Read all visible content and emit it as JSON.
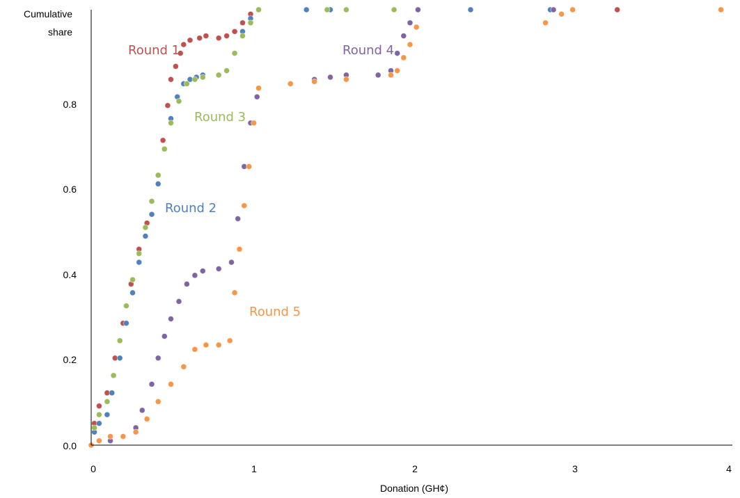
{
  "chart_data": {
    "type": "scatter",
    "title": "",
    "xlabel": "Donation (GH¢)",
    "ylabel_lines": [
      "Cumulative",
      "share"
    ],
    "xlim": [
      0,
      4
    ],
    "ylim": [
      0,
      1
    ],
    "xticks": [
      "0",
      "1",
      "2",
      "3",
      "4"
    ],
    "yticks": [
      "0.0",
      "0.2",
      "0.4",
      "0.6",
      "0.8"
    ],
    "grid": false,
    "legend": "inline labels",
    "series": [
      {
        "name": "Round 1",
        "color": "#c0504d",
        "points": [
          [
            0,
            0
          ],
          [
            0.02,
            0.05
          ],
          [
            0.05,
            0.09
          ],
          [
            0.1,
            0.12
          ],
          [
            0.15,
            0.2
          ],
          [
            0.2,
            0.28
          ],
          [
            0.25,
            0.37
          ],
          [
            0.3,
            0.45
          ],
          [
            0.35,
            0.51
          ],
          [
            0.38,
            0.56
          ],
          [
            0.42,
            0.62
          ],
          [
            0.45,
            0.7
          ],
          [
            0.48,
            0.78
          ],
          [
            0.5,
            0.84
          ],
          [
            0.53,
            0.87
          ],
          [
            0.56,
            0.9
          ],
          [
            0.58,
            0.92
          ],
          [
            0.62,
            0.93
          ],
          [
            0.68,
            0.935
          ],
          [
            0.72,
            0.94
          ],
          [
            0.8,
            0.935
          ],
          [
            0.85,
            0.94
          ],
          [
            0.9,
            0.95
          ],
          [
            0.95,
            0.97
          ],
          [
            1.0,
            0.99
          ],
          [
            1.05,
            1.0
          ],
          [
            3.3,
            1.0
          ]
        ]
      },
      {
        "name": "Round 2",
        "color": "#4f81bd",
        "points": [
          [
            0,
            0
          ],
          [
            0.02,
            0.03
          ],
          [
            0.05,
            0.05
          ],
          [
            0.1,
            0.07
          ],
          [
            0.13,
            0.12
          ],
          [
            0.18,
            0.2
          ],
          [
            0.22,
            0.28
          ],
          [
            0.26,
            0.35
          ],
          [
            0.3,
            0.42
          ],
          [
            0.34,
            0.48
          ],
          [
            0.38,
            0.53
          ],
          [
            0.42,
            0.6
          ],
          [
            0.46,
            0.68
          ],
          [
            0.5,
            0.75
          ],
          [
            0.54,
            0.8
          ],
          [
            0.58,
            0.83
          ],
          [
            0.62,
            0.84
          ],
          [
            0.66,
            0.845
          ],
          [
            0.7,
            0.85
          ],
          [
            0.8,
            0.85
          ],
          [
            0.85,
            0.86
          ],
          [
            0.9,
            0.9
          ],
          [
            0.95,
            0.95
          ],
          [
            1.0,
            0.98
          ],
          [
            1.05,
            1.0
          ],
          [
            1.35,
            1.0
          ],
          [
            1.5,
            1.0
          ],
          [
            2.38,
            1.0
          ],
          [
            2.88,
            1.0
          ]
        ]
      },
      {
        "name": "Round 3",
        "color": "#9bbb59",
        "points": [
          [
            0,
            0
          ],
          [
            0.02,
            0.04
          ],
          [
            0.05,
            0.07
          ],
          [
            0.1,
            0.1
          ],
          [
            0.14,
            0.16
          ],
          [
            0.18,
            0.24
          ],
          [
            0.22,
            0.32
          ],
          [
            0.26,
            0.38
          ],
          [
            0.3,
            0.44
          ],
          [
            0.34,
            0.5
          ],
          [
            0.38,
            0.56
          ],
          [
            0.42,
            0.62
          ],
          [
            0.46,
            0.68
          ],
          [
            0.5,
            0.74
          ],
          [
            0.55,
            0.79
          ],
          [
            0.6,
            0.83
          ],
          [
            0.65,
            0.84
          ],
          [
            0.7,
            0.845
          ],
          [
            0.8,
            0.85
          ],
          [
            0.85,
            0.86
          ],
          [
            0.9,
            0.9
          ],
          [
            0.95,
            0.94
          ],
          [
            1.0,
            0.97
          ],
          [
            1.05,
            1.0
          ],
          [
            1.48,
            1.0
          ],
          [
            1.6,
            1.0
          ],
          [
            1.9,
            1.0
          ],
          [
            2.05,
            1.0
          ]
        ]
      },
      {
        "name": "Round 4",
        "color": "#8064a2",
        "points": [
          [
            0.12,
            0.01
          ],
          [
            0.2,
            0.02
          ],
          [
            0.28,
            0.04
          ],
          [
            0.32,
            0.08
          ],
          [
            0.38,
            0.14
          ],
          [
            0.42,
            0.2
          ],
          [
            0.46,
            0.25
          ],
          [
            0.5,
            0.29
          ],
          [
            0.55,
            0.33
          ],
          [
            0.6,
            0.37
          ],
          [
            0.65,
            0.39
          ],
          [
            0.7,
            0.4
          ],
          [
            0.8,
            0.405
          ],
          [
            0.88,
            0.42
          ],
          [
            0.92,
            0.52
          ],
          [
            0.96,
            0.64
          ],
          [
            1.0,
            0.74
          ],
          [
            1.04,
            0.8
          ],
          [
            1.05,
            0.82
          ],
          [
            1.4,
            0.84
          ],
          [
            1.5,
            0.845
          ],
          [
            1.6,
            0.85
          ],
          [
            1.8,
            0.85
          ],
          [
            1.88,
            0.86
          ],
          [
            1.92,
            0.9
          ],
          [
            1.96,
            0.94
          ],
          [
            2.0,
            0.97
          ],
          [
            2.05,
            1.0
          ],
          [
            2.9,
            1.0
          ],
          [
            3.02,
            1.0
          ]
        ]
      },
      {
        "name": "Round 5",
        "color": "#f79646",
        "points": [
          [
            0,
            0
          ],
          [
            0.05,
            0.01
          ],
          [
            0.12,
            0.02
          ],
          [
            0.2,
            0.02
          ],
          [
            0.28,
            0.03
          ],
          [
            0.35,
            0.06
          ],
          [
            0.42,
            0.1
          ],
          [
            0.5,
            0.14
          ],
          [
            0.58,
            0.18
          ],
          [
            0.65,
            0.22
          ],
          [
            0.72,
            0.23
          ],
          [
            0.8,
            0.23
          ],
          [
            0.87,
            0.24
          ],
          [
            0.9,
            0.35
          ],
          [
            0.93,
            0.45
          ],
          [
            0.96,
            0.55
          ],
          [
            0.99,
            0.64
          ],
          [
            1.02,
            0.74
          ],
          [
            1.05,
            0.82
          ],
          [
            1.25,
            0.83
          ],
          [
            1.4,
            0.835
          ],
          [
            1.6,
            0.84
          ],
          [
            1.88,
            0.85
          ],
          [
            1.92,
            0.86
          ],
          [
            1.96,
            0.89
          ],
          [
            2.0,
            0.92
          ],
          [
            2.04,
            0.96
          ],
          [
            2.85,
            0.97
          ],
          [
            2.95,
            0.99
          ],
          [
            3.02,
            1.0
          ],
          [
            3.95,
            1.0
          ]
        ]
      }
    ],
    "series_labels": [
      {
        "text": "Round 1",
        "color": "#c0504d"
      },
      {
        "text": "Round 2",
        "color": "#4f81bd"
      },
      {
        "text": "Round 3",
        "color": "#9bbb59"
      },
      {
        "text": "Round 4",
        "color": "#8064a2"
      },
      {
        "text": "Round 5",
        "color": "#f79646"
      }
    ]
  }
}
